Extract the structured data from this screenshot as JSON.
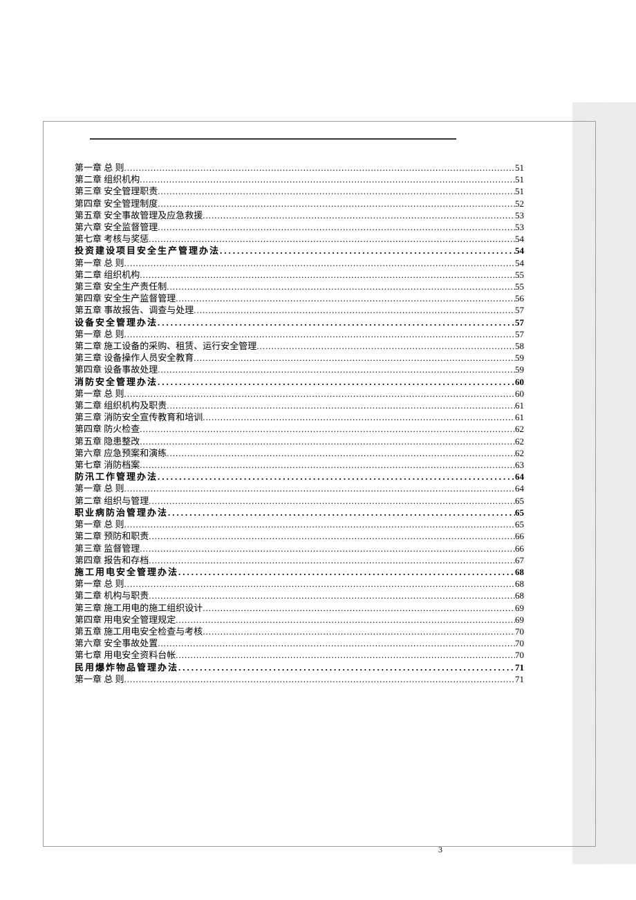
{
  "pageNumber": "3",
  "entries": [
    {
      "label": "第一章  总  则",
      "page": "51",
      "bold": false
    },
    {
      "label": "第二章  组织机构",
      "page": "51",
      "bold": false
    },
    {
      "label": "第三章  安全管理职责",
      "page": "51",
      "bold": false
    },
    {
      "label": "第四章  安全管理制度",
      "page": "52",
      "bold": false
    },
    {
      "label": "第五章  安全事故管理及应急救援",
      "page": "53",
      "bold": false
    },
    {
      "label": "第六章  安全监督管理",
      "page": "53",
      "bold": false
    },
    {
      "label": "第七章  考核与奖惩",
      "page": "54",
      "bold": false
    },
    {
      "label": "投资建设项目安全生产管理办法",
      "page": "54",
      "bold": true
    },
    {
      "label": "第一章  总  则",
      "page": "54",
      "bold": false
    },
    {
      "label": "第二章  组织机构",
      "page": "55",
      "bold": false
    },
    {
      "label": "第三章  安全生产责任制",
      "page": "55",
      "bold": false
    },
    {
      "label": "第四章  安全生产监督管理",
      "page": "56",
      "bold": false
    },
    {
      "label": "第五章  事故报告、调查与处理",
      "page": "57",
      "bold": false
    },
    {
      "label": "设备安全管理办法",
      "page": "57",
      "bold": true
    },
    {
      "label": "第一章  总  则",
      "page": "57",
      "bold": false
    },
    {
      "label": "第二章  施工设备的采购、租赁、运行安全管理",
      "page": "58",
      "bold": false
    },
    {
      "label": "第三章  设备操作人员安全教育",
      "page": "59",
      "bold": false
    },
    {
      "label": "第四章  设备事故处理",
      "page": "59",
      "bold": false
    },
    {
      "label": "消防安全管理办法",
      "page": "60",
      "bold": true
    },
    {
      "label": "第一章 总  则",
      "page": "60",
      "bold": false
    },
    {
      "label": "第二章 组织机构及职责",
      "page": "61",
      "bold": false
    },
    {
      "label": "第三章 消防安全宣传教育和培训",
      "page": "61",
      "bold": false
    },
    {
      "label": "第四章 防火检查",
      "page": "62",
      "bold": false
    },
    {
      "label": "第五章 隐患整改",
      "page": "62",
      "bold": false
    },
    {
      "label": "第六章  应急预案和演练",
      "page": "62",
      "bold": false
    },
    {
      "label": "第七章 消防档案",
      "page": "63",
      "bold": false
    },
    {
      "label": "防汛工作管理办法",
      "page": "64",
      "bold": true
    },
    {
      "label": "第一章  总  则",
      "page": "64",
      "bold": false
    },
    {
      "label": "第二章  组织与管理",
      "page": "65",
      "bold": false
    },
    {
      "label": "职业病防治管理办法",
      "page": "65",
      "bold": true
    },
    {
      "label": "第一章  总  则",
      "page": "65",
      "bold": false
    },
    {
      "label": "第二章  预防和职责",
      "page": "66",
      "bold": false
    },
    {
      "label": "第三章  监督管理",
      "page": "66",
      "bold": false
    },
    {
      "label": "第四章  报告和存档",
      "page": "67",
      "bold": false
    },
    {
      "label": "施工用电安全管理办法",
      "page": "68",
      "bold": true
    },
    {
      "label": "第一章  总  则",
      "page": "68",
      "bold": false
    },
    {
      "label": "第二章  机构与职责",
      "page": "68",
      "bold": false
    },
    {
      "label": "第三章  施工用电的施工组织设计",
      "page": "69",
      "bold": false
    },
    {
      "label": "第四章  用电安全管理规定",
      "page": "69",
      "bold": false
    },
    {
      "label": "第五章  施工用电安全检查与考核",
      "page": "70",
      "bold": false
    },
    {
      "label": "第六章  安全事故处置",
      "page": "70",
      "bold": false
    },
    {
      "label": "第七章  用电安全资料台帐",
      "page": "70",
      "bold": false
    },
    {
      "label": "民用爆炸物品管理办法",
      "page": "71",
      "bold": true
    },
    {
      "label": "第一章  总  则",
      "page": "71",
      "bold": false
    }
  ]
}
